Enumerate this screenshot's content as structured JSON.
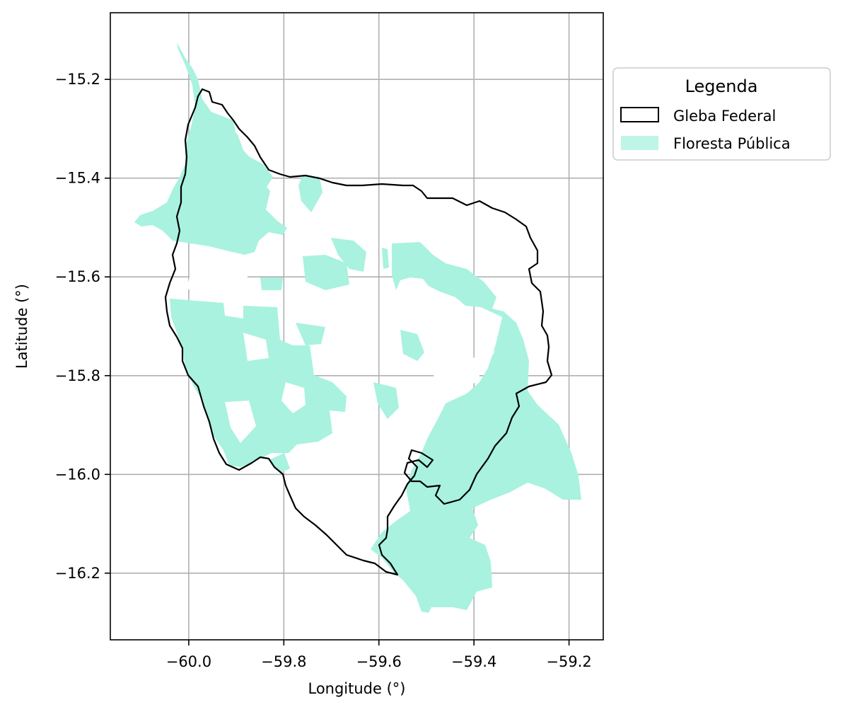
{
  "map": {
    "xlabel": "Longitude (°)",
    "ylabel": "Latitude (°)",
    "xlim": [
      -60.165,
      -59.128
    ],
    "ylim": [
      -16.335,
      -15.065
    ],
    "xticks": [
      -60.0,
      -59.8,
      -59.6,
      -59.4,
      -59.2
    ],
    "yticks": [
      -15.2,
      -15.4,
      -15.6,
      -15.8,
      -16.0,
      -16.2
    ],
    "xtick_labels": [
      "−60.0",
      "−59.8",
      "−59.6",
      "−59.4",
      "−59.2"
    ],
    "ytick_labels": [
      "−15.2",
      "−15.4",
      "−15.6",
      "−15.8",
      "−16.0",
      "−16.2"
    ],
    "grid": true,
    "colors": {
      "forest": "#a8f2df",
      "boundary": "#000000",
      "grid": "#b0b0b0"
    },
    "legend": {
      "title": "Legenda",
      "placement": "outside-right",
      "items": [
        {
          "label": "Gleba Federal",
          "symbol": "outline"
        },
        {
          "label": "Floresta Pública",
          "symbol": "fill"
        }
      ]
    }
  }
}
